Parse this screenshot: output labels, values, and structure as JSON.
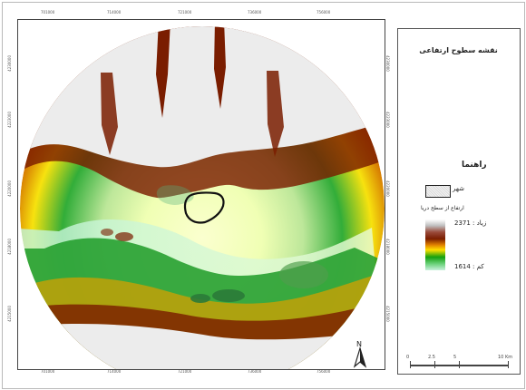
{
  "map": {
    "title": "نقشه سطوح ارتفاعی",
    "x_ticks": [
      "701000",
      "714000",
      "721000",
      "736000",
      "756000"
    ],
    "y_ticks": [
      "4230000",
      "4223000",
      "4220000",
      "4218000",
      "4215000"
    ]
  },
  "legend": {
    "title": "راهنما",
    "city_label": "شهر",
    "elevation_title": "ارتفاع از سطح دریا",
    "high_label": "زیاد : 2371",
    "low_label": "کم : 1614"
  },
  "north_arrow": {
    "label": "N"
  },
  "scale": {
    "labels": [
      "0",
      "2.5",
      "5",
      "10 Km"
    ]
  },
  "colors": {
    "high": "#7a1d00",
    "mid": "#e08000",
    "low": "#14a00f",
    "valley": "#c9f0dc",
    "city_outline": "#111111"
  }
}
